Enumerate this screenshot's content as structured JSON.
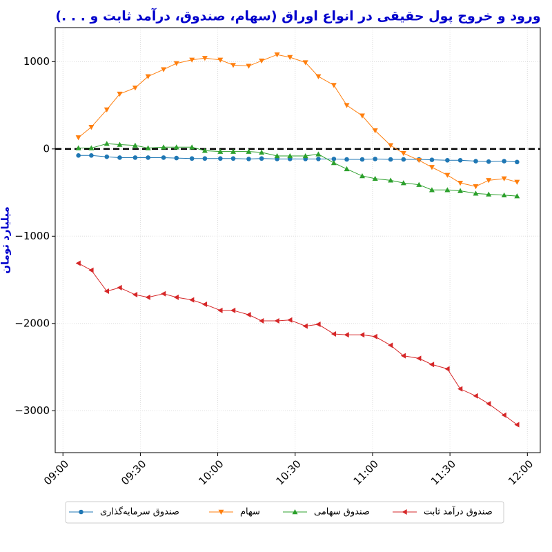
{
  "chart_data": {
    "type": "line",
    "title": "ورود و خروج پول حقیقی در انواع اوراق (سهام، صندوق، درآمد ثابت و . . .)",
    "y_label": "میلیارد تومان",
    "x": [
      "09:06",
      "09:11",
      "09:17",
      "09:22",
      "09:28",
      "09:33",
      "09:39",
      "09:44",
      "09:50",
      "09:55",
      "10:01",
      "10:06",
      "10:12",
      "10:17",
      "10:23",
      "10:28",
      "10:34",
      "10:39",
      "10:45",
      "10:50",
      "10:56",
      "11:01",
      "11:07",
      "11:12",
      "11:18",
      "11:23",
      "11:29",
      "11:34",
      "11:40",
      "11:45",
      "11:51",
      "11:56"
    ],
    "series": [
      {
        "name": "صندوق سرمایه‌گذاری",
        "color": "#1f77b4",
        "marker": "circle",
        "values": [
          -75,
          -75,
          -90,
          -100,
          -100,
          -100,
          -100,
          -105,
          -110,
          -110,
          -110,
          -110,
          -115,
          -110,
          -115,
          -115,
          -115,
          -115,
          -115,
          -120,
          -120,
          -115,
          -120,
          -120,
          -120,
          -125,
          -130,
          -130,
          -140,
          -145,
          -140,
          -150
        ]
      },
      {
        "name": "سهام",
        "color": "#ff7f0e",
        "marker": "triangle-down",
        "values": [
          130,
          250,
          450,
          630,
          700,
          830,
          910,
          980,
          1020,
          1040,
          1020,
          960,
          950,
          1010,
          1080,
          1050,
          990,
          830,
          730,
          500,
          380,
          210,
          40,
          -50,
          -130,
          -210,
          -300,
          -390,
          -430,
          -360,
          -340,
          -380
        ]
      },
      {
        "name": "صندوق سهامی",
        "color": "#2ca02c",
        "marker": "triangle-up",
        "values": [
          10,
          10,
          60,
          50,
          40,
          10,
          20,
          20,
          20,
          -20,
          -30,
          -30,
          -30,
          -40,
          -80,
          -80,
          -80,
          -60,
          -160,
          -230,
          -310,
          -340,
          -360,
          -390,
          -410,
          -470,
          -470,
          -480,
          -510,
          -520,
          -530,
          -540
        ]
      },
      {
        "name": "صندوق درآمد ثابت",
        "color": "#d62728",
        "marker": "triangle-left",
        "values": [
          -1310,
          -1390,
          -1630,
          -1590,
          -1670,
          -1700,
          -1660,
          -1700,
          -1730,
          -1780,
          -1850,
          -1850,
          -1900,
          -1970,
          -1970,
          -1960,
          -2030,
          -2010,
          -2120,
          -2130,
          -2130,
          -2150,
          -2250,
          -2370,
          -2400,
          -2470,
          -2520,
          -2750,
          -2830,
          -2920,
          -3050,
          -3160
        ]
      }
    ],
    "xlim": [
      "08:57",
      "12:05"
    ],
    "xticks": [
      "09:00",
      "09:30",
      "10:00",
      "10:30",
      "11:00",
      "11:30",
      "12:00"
    ],
    "ylim": [
      -3480,
      1390
    ],
    "yticks": [
      {
        "value": -3000,
        "label": "−3000"
      },
      {
        "value": -2000,
        "label": "−2000"
      },
      {
        "value": -1000,
        "label": "−1000"
      },
      0,
      1000
    ],
    "hline": 0,
    "grid": true,
    "legend": "bottom"
  }
}
